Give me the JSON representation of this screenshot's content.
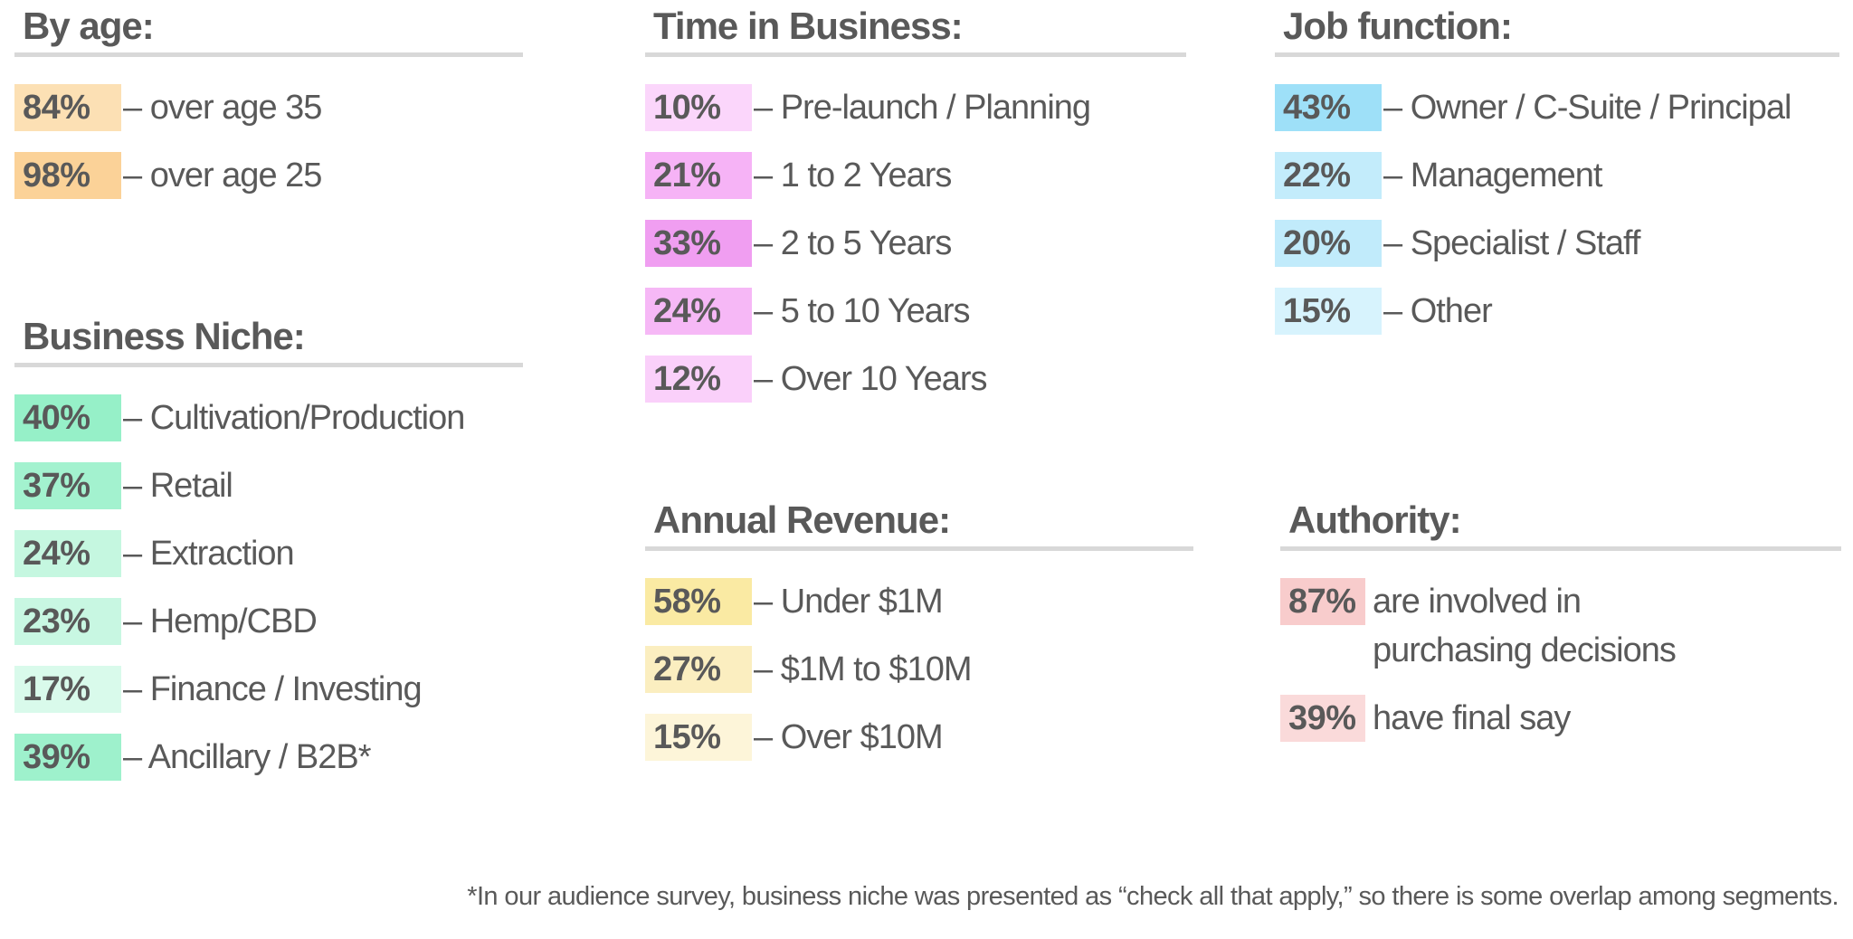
{
  "age": {
    "title": "By age:",
    "items": [
      {
        "pct": "84%",
        "label": "– over age 35",
        "color": "#fce0b4"
      },
      {
        "pct": "98%",
        "label": "– over age 25",
        "color": "#fbd298"
      }
    ]
  },
  "niche": {
    "title": "Business Niche:",
    "items": [
      {
        "pct": "40%",
        "label": "– Cultivation/Production",
        "color": "#96f0c8"
      },
      {
        "pct": "37%",
        "label": "– Retail",
        "color": "#a3f2cf"
      },
      {
        "pct": "24%",
        "label": "– Extraction",
        "color": "#c5f7e0"
      },
      {
        "pct": "23%",
        "label": "– Hemp/CBD",
        "color": "#c8f7e2"
      },
      {
        "pct": "17%",
        "label": "– Finance / Investing",
        "color": "#d9faeb"
      },
      {
        "pct": "39%",
        "label": "– Ancillary / B2B*",
        "color": "#9ef1cc"
      }
    ]
  },
  "time": {
    "title": "Time in Business:",
    "items": [
      {
        "pct": "10%",
        "label": "– Pre-launch / Planning",
        "color": "#fbd6fb"
      },
      {
        "pct": "21%",
        "label": "– 1 to 2 Years",
        "color": "#f6b3f6"
      },
      {
        "pct": "33%",
        "label": "– 2 to 5 Years",
        "color": "#f09ef1"
      },
      {
        "pct": "24%",
        "label": "– 5 to 10 Years",
        "color": "#f6b8f6"
      },
      {
        "pct": "12%",
        "label": "– Over 10 Years",
        "color": "#fad0fa"
      }
    ]
  },
  "revenue": {
    "title": "Annual Revenue:",
    "items": [
      {
        "pct": "58%",
        "label": "– Under $1M",
        "color": "#faeaa3"
      },
      {
        "pct": "27%",
        "label": "– $1M to $10M",
        "color": "#fbeec0"
      },
      {
        "pct": "15%",
        "label": "– Over $10M",
        "color": "#fdf5d9"
      }
    ]
  },
  "job": {
    "title": "Job function:",
    "items": [
      {
        "pct": "43%",
        "label": "– Owner / C-Suite / Principal",
        "color": "#9ee0f8"
      },
      {
        "pct": "22%",
        "label": "– Management",
        "color": "#c3ecfb"
      },
      {
        "pct": "20%",
        "label": "– Specialist / Staff",
        "color": "#c1ebfb"
      },
      {
        "pct": "15%",
        "label": "– Other",
        "color": "#d7f3fd"
      }
    ]
  },
  "authority": {
    "title": "Authority:",
    "items": [
      {
        "pct": "87%",
        "label": "are involved in purchasing decisions",
        "color": "#f8cccc"
      },
      {
        "pct": "39%",
        "label": "have final say",
        "color": "#fadada"
      }
    ]
  },
  "footnote": "*In our audience survey, business niche was presented as “check all that apply,” so there is some overlap among segments."
}
